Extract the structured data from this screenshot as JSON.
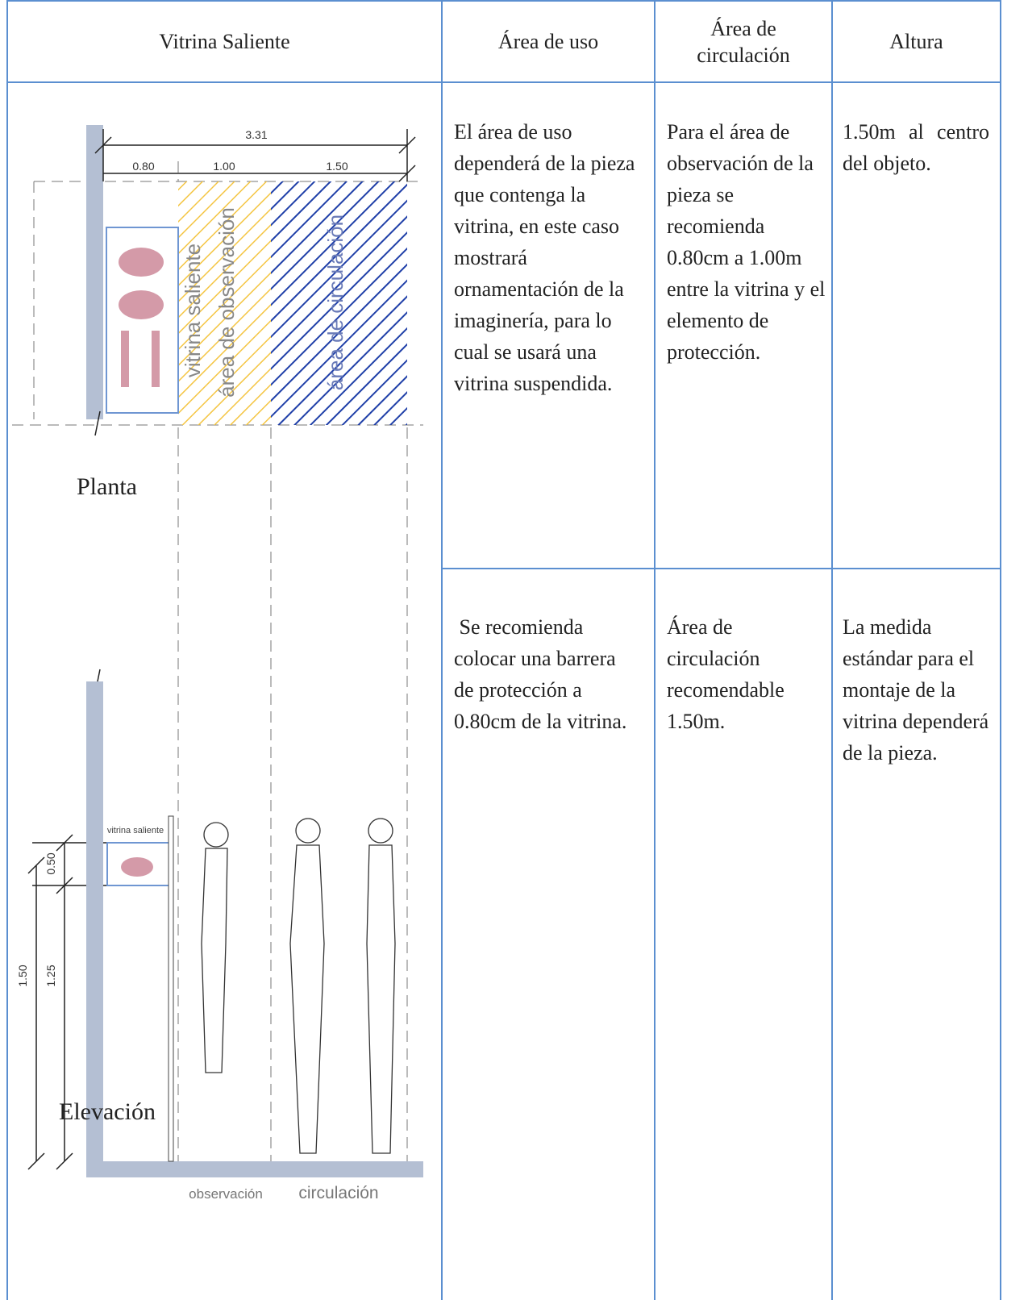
{
  "table": {
    "header": [
      "Vitrina Saliente",
      "Área de uso",
      "Área de circulación",
      "Altura"
    ],
    "rows": [
      [
        "El área de uso dependerá de la pieza que contenga la vitrina, en este caso mostrará ornamentación de la imaginería, para lo cual se usará una vitrina suspendida.",
        "Para el área de observación de la pieza se recomienda 0.80cm a 1.00m entre la vitrina y el elemento de protección.",
        "1.50m al centro del objeto."
      ],
      [
        " Se recomienda colocar una barrera de protección a 0.80cm de la vitrina.",
        "Área de circulación recomendable 1.50m.",
        "La medida estándar para el montaje de la vitrina dependerá de la pieza."
      ]
    ]
  },
  "drawing": {
    "plan_title": "Planta",
    "plan_dimensions": [
      "3.31",
      "0.80",
      "1.00",
      "1.50"
    ],
    "plan_zones": [
      "vitrina saliente",
      "área de observación",
      "área de circulación"
    ],
    "elevation_title": "Elevación",
    "elevation_labels": [
      "vitrina saliente",
      "0.50",
      "1.25",
      "1.50"
    ],
    "elevation_zones": [
      "observación",
      "circulación"
    ]
  }
}
